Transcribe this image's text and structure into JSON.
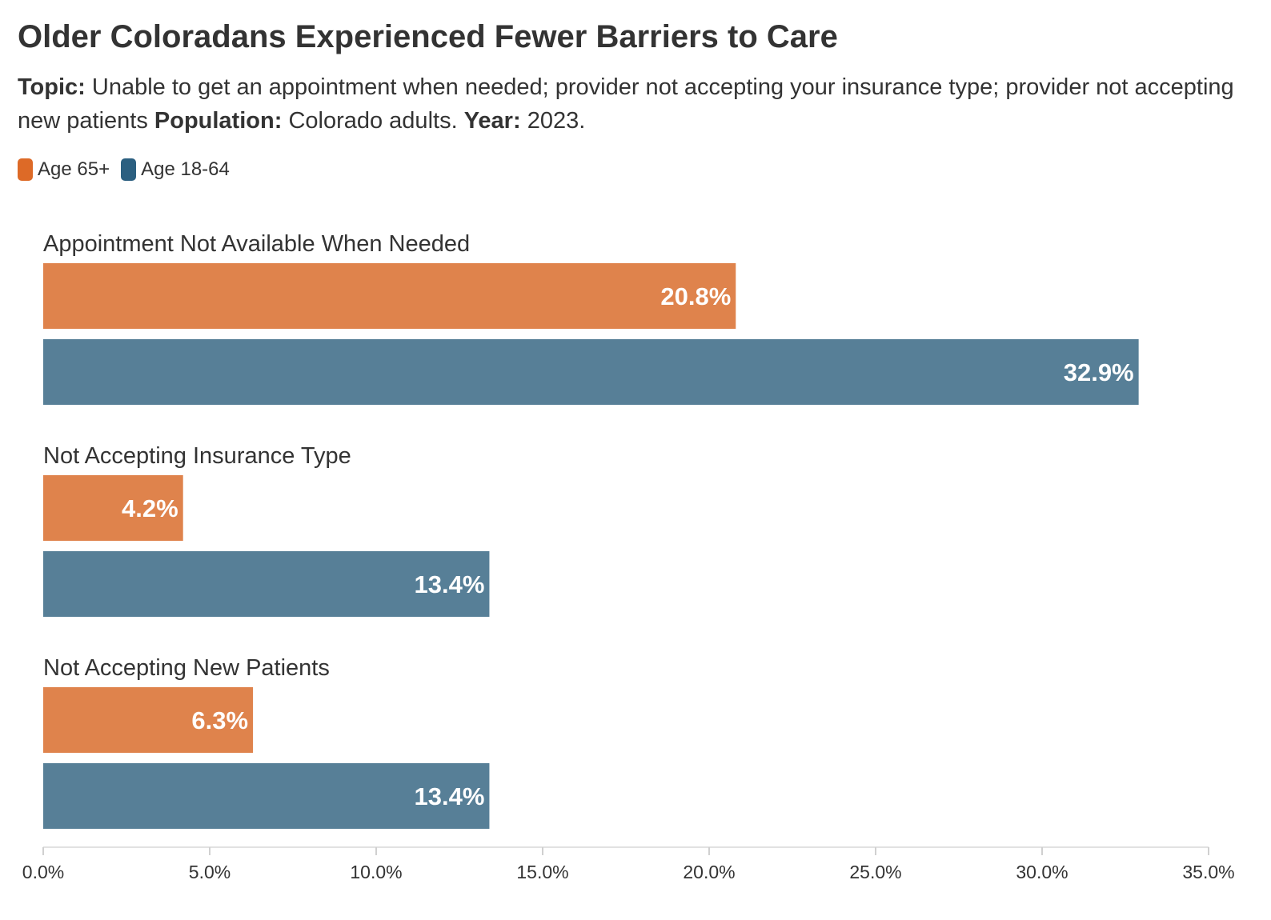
{
  "header": {
    "title": "Older Coloradans Experienced Fewer Barriers to Care",
    "topic_label": "Topic:",
    "topic_text": "Unable to get an appointment when needed; provider not accepting your insurance type; provider not accepting new patients",
    "population_label": "Population:",
    "population_text": "Colorado adults.",
    "year_label": "Year:",
    "year_text": "2023."
  },
  "legend": [
    {
      "label": "Age 65+",
      "color": "#dd6a27"
    },
    {
      "label": "Age 18-64",
      "color": "#2b5f80"
    }
  ],
  "chart_data": {
    "type": "bar",
    "orientation": "horizontal",
    "categories": [
      "Appointment Not Available When Needed",
      "Not Accepting Insurance Type",
      "Not Accepting New Patients"
    ],
    "series": [
      {
        "name": "Age 65+",
        "values": [
          20.8,
          4.2,
          6.3
        ],
        "labels": [
          "20.8%",
          "4.2%",
          "6.3%"
        ],
        "color": "#df834c"
      },
      {
        "name": "Age 18-64",
        "values": [
          32.9,
          13.4,
          13.4
        ],
        "labels": [
          "32.9%",
          "13.4%",
          "13.4%"
        ],
        "color": "#577f97"
      }
    ],
    "xlim": [
      0,
      35
    ],
    "xticks": [
      0,
      5,
      10,
      15,
      20,
      25,
      30,
      35
    ],
    "xtick_labels": [
      "0.0%",
      "5.0%",
      "10.0%",
      "15.0%",
      "20.0%",
      "25.0%",
      "30.0%",
      "35.0%"
    ],
    "grid": false,
    "legend_position": "top-left"
  }
}
